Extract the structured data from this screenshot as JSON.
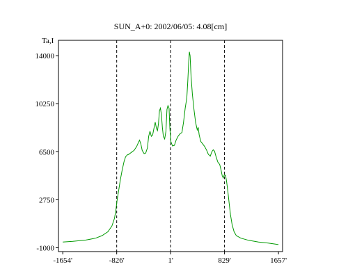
{
  "chart_data": {
    "type": "line",
    "title": "SUN_A+0: 2002/06/05: 4.08[cm]",
    "ylabel": "Ta,I",
    "xlabel": "",
    "xlim": [
      -1720,
      1720
    ],
    "ylim": [
      -1300,
      15200
    ],
    "x_ticks": [
      {
        "value": -1654,
        "label": "-1654'"
      },
      {
        "value": -826,
        "label": "-826'"
      },
      {
        "value": 1,
        "label": "1'"
      },
      {
        "value": 829,
        "label": "829'"
      },
      {
        "value": 1657,
        "label": "1657'"
      }
    ],
    "y_ticks": [
      {
        "value": 14000,
        "label": "14000"
      },
      {
        "value": 10250,
        "label": "10250"
      },
      {
        "value": 6500,
        "label": "6500"
      },
      {
        "value": 2750,
        "label": "2750"
      },
      {
        "value": -1000,
        "label": "-1000"
      }
    ],
    "vlines": [
      -826,
      1,
      829
    ],
    "series": [
      {
        "color": "#009900",
        "points": [
          [
            -1654,
            -550
          ],
          [
            -1500,
            -500
          ],
          [
            -1300,
            -400
          ],
          [
            -1150,
            -250
          ],
          [
            -1050,
            -50
          ],
          [
            -960,
            250
          ],
          [
            -900,
            700
          ],
          [
            -860,
            1300
          ],
          [
            -840,
            1900
          ],
          [
            -820,
            2700
          ],
          [
            -795,
            3500
          ],
          [
            -770,
            4300
          ],
          [
            -745,
            5000
          ],
          [
            -715,
            5700
          ],
          [
            -690,
            6100
          ],
          [
            -665,
            6250
          ],
          [
            -640,
            6300
          ],
          [
            -600,
            6450
          ],
          [
            -560,
            6600
          ],
          [
            -520,
            6900
          ],
          [
            -495,
            7200
          ],
          [
            -475,
            7400
          ],
          [
            -455,
            7100
          ],
          [
            -435,
            6600
          ],
          [
            -405,
            6350
          ],
          [
            -380,
            6400
          ],
          [
            -355,
            6800
          ],
          [
            -335,
            7700
          ],
          [
            -315,
            8100
          ],
          [
            -295,
            7700
          ],
          [
            -275,
            7800
          ],
          [
            -255,
            8300
          ],
          [
            -235,
            8800
          ],
          [
            -215,
            8300
          ],
          [
            -200,
            8150
          ],
          [
            -185,
            8700
          ],
          [
            -170,
            9700
          ],
          [
            -155,
            9900
          ],
          [
            -140,
            9400
          ],
          [
            -125,
            8400
          ],
          [
            -110,
            7700
          ],
          [
            -90,
            7500
          ],
          [
            -70,
            8100
          ],
          [
            -55,
            9800
          ],
          [
            -40,
            10100
          ],
          [
            -22,
            9900
          ],
          [
            -10,
            8300
          ],
          [
            5,
            7300
          ],
          [
            30,
            6950
          ],
          [
            60,
            7000
          ],
          [
            85,
            7400
          ],
          [
            115,
            7700
          ],
          [
            145,
            7900
          ],
          [
            175,
            8000
          ],
          [
            200,
            8800
          ],
          [
            225,
            9900
          ],
          [
            250,
            10700
          ],
          [
            265,
            12000
          ],
          [
            280,
            13600
          ],
          [
            290,
            14300
          ],
          [
            300,
            14000
          ],
          [
            315,
            12400
          ],
          [
            335,
            11000
          ],
          [
            360,
            9800
          ],
          [
            385,
            8800
          ],
          [
            410,
            8200
          ],
          [
            425,
            8400
          ],
          [
            440,
            7800
          ],
          [
            465,
            7300
          ],
          [
            495,
            7100
          ],
          [
            525,
            6900
          ],
          [
            555,
            6600
          ],
          [
            580,
            6300
          ],
          [
            610,
            6150
          ],
          [
            635,
            6500
          ],
          [
            655,
            6650
          ],
          [
            675,
            6550
          ],
          [
            700,
            6100
          ],
          [
            725,
            5700
          ],
          [
            755,
            5500
          ],
          [
            775,
            5100
          ],
          [
            795,
            4600
          ],
          [
            810,
            4450
          ],
          [
            825,
            4700
          ],
          [
            845,
            4650
          ],
          [
            860,
            4200
          ],
          [
            880,
            3400
          ],
          [
            900,
            2500
          ],
          [
            920,
            1600
          ],
          [
            945,
            800
          ],
          [
            975,
            250
          ],
          [
            1010,
            -50
          ],
          [
            1080,
            -250
          ],
          [
            1200,
            -420
          ],
          [
            1350,
            -550
          ],
          [
            1500,
            -640
          ],
          [
            1657,
            -750
          ]
        ]
      }
    ]
  }
}
